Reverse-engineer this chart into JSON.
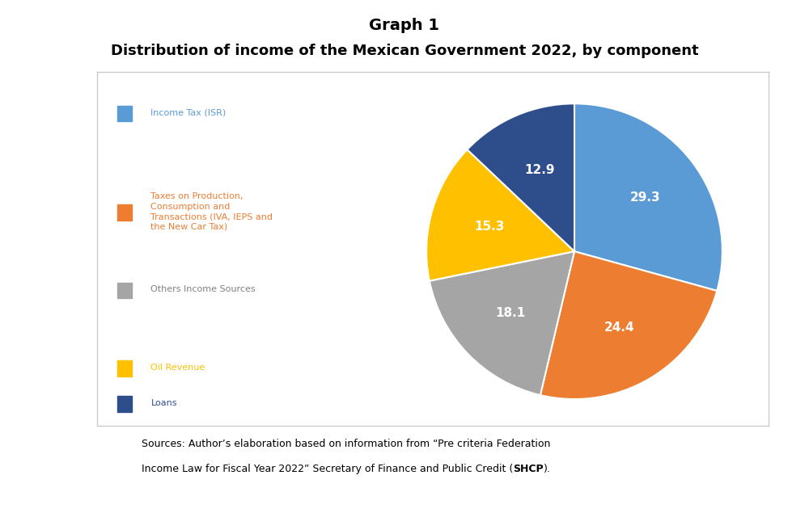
{
  "title_line1": "Graph 1",
  "title_line2": "Distribution of income of the Mexican Government 2022, by component",
  "slices": [
    29.3,
    24.4,
    18.1,
    15.3,
    12.9
  ],
  "labels": [
    "29.3",
    "24.4",
    "18.1",
    "15.3",
    "12.9"
  ],
  "colors": [
    "#5B9BD5",
    "#ED7D31",
    "#A5A5A5",
    "#FFC000",
    "#2E4D8B"
  ],
  "legend_labels": [
    "Income Tax (ISR)",
    "Taxes on Production,\nConsumption and\nTransactions (IVA, IEPS and\nthe New Car Tax)",
    "Others Income Sources",
    "Oil Revenue",
    "Loans"
  ],
  "legend_colors": [
    "#5B9BD5",
    "#ED7D31",
    "#A5A5A5",
    "#FFC000",
    "#2E4D8B"
  ],
  "legend_text_colors": [
    "#5B9BD5",
    "#ED7D31",
    "#808080",
    "#FFC000",
    "#2E4D8B"
  ],
  "start_angle": 90,
  "background_color": "#FFFFFF",
  "box_edge_color": "#CCCCCC",
  "source_line1": "Sources: Author’s elaboration based on information from “Pre criteria Federation",
  "source_line2_pre": "Income Law for Fiscal Year 2022” Secretary of Finance and Public Credit (",
  "source_bold": "SHCP",
  "source_line2_post": ")."
}
